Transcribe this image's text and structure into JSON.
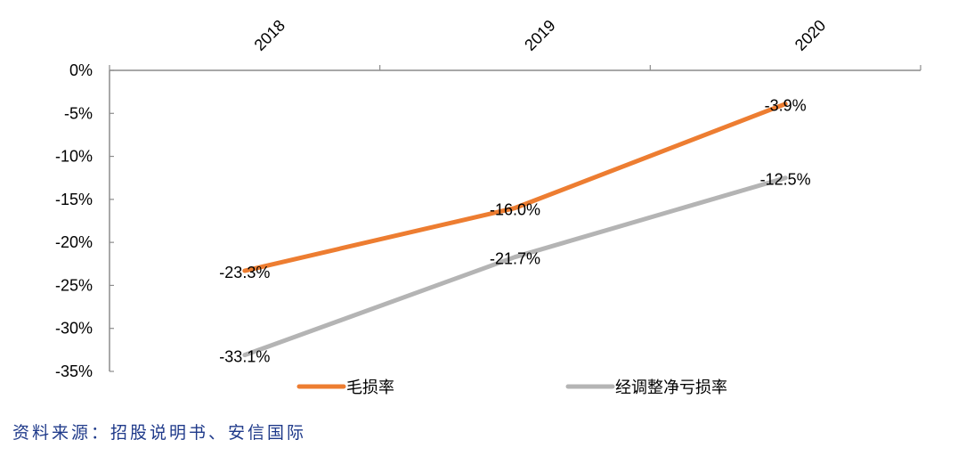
{
  "chart_data": {
    "type": "line",
    "title": "",
    "xlabel": "",
    "ylabel": "",
    "categories": [
      "2018",
      "2019",
      "2020"
    ],
    "x_axis_position": "top",
    "x_tick_rotation": -45,
    "ylim": [
      -35,
      0
    ],
    "y_ticks": [
      "0%",
      "-5%",
      "-10%",
      "-15%",
      "-20%",
      "-25%",
      "-30%",
      "-35%"
    ],
    "y_tick_values": [
      0,
      -5,
      -10,
      -15,
      -20,
      -25,
      -30,
      -35
    ],
    "grid": false,
    "legend_position": "bottom",
    "series": [
      {
        "name": "毛损率",
        "color": "#ED7D31",
        "values": [
          -23.3,
          -16.0,
          -3.9
        ],
        "labels": [
          "-23.3%",
          "-16.0%",
          "-3.9%"
        ]
      },
      {
        "name": "经调整净亏损率",
        "color": "#B4B4B4",
        "values": [
          -33.1,
          -21.7,
          -12.5
        ],
        "labels": [
          "-33.1%",
          "-21.7%",
          "-12.5%"
        ]
      }
    ]
  },
  "source_note": "资料来源：招股说明书、安信国际"
}
